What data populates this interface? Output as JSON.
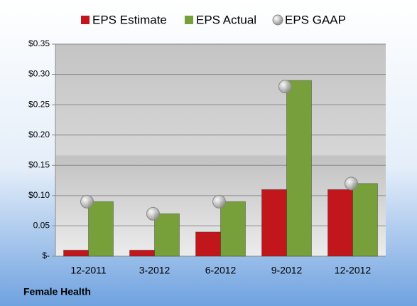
{
  "chart_data": {
    "type": "bar",
    "categories": [
      "12-2011",
      "3-2012",
      "6-2012",
      "9-2012",
      "12-2012"
    ],
    "series": [
      {
        "name": "EPS Estimate",
        "color": "#c0161c",
        "mark": "bar",
        "values": [
          0.01,
          0.01,
          0.04,
          0.11,
          0.11
        ]
      },
      {
        "name": "EPS Actual",
        "color": "#77a03a",
        "mark": "bar",
        "values": [
          0.09,
          0.07,
          0.09,
          0.29,
          0.12
        ]
      },
      {
        "name": "EPS GAAP",
        "color": "#b4b4b4",
        "mark": "point",
        "values": [
          0.09,
          0.07,
          0.09,
          0.28,
          0.12
        ]
      }
    ],
    "ylim": [
      0,
      0.35
    ],
    "yticks": [
      {
        "value": 0,
        "label": "$-"
      },
      {
        "value": 0.05,
        "label": "0.05"
      },
      {
        "value": 0.1,
        "label": "$0.10"
      },
      {
        "value": 0.15,
        "label": "$0.15"
      },
      {
        "value": 0.2,
        "label": "$0.20"
      },
      {
        "value": 0.25,
        "label": "$0.25"
      },
      {
        "value": 0.3,
        "label": "$0.30"
      },
      {
        "value": 0.35,
        "label": "$0.35"
      }
    ],
    "grid": true,
    "legend": "top",
    "footer": "Female Health"
  }
}
